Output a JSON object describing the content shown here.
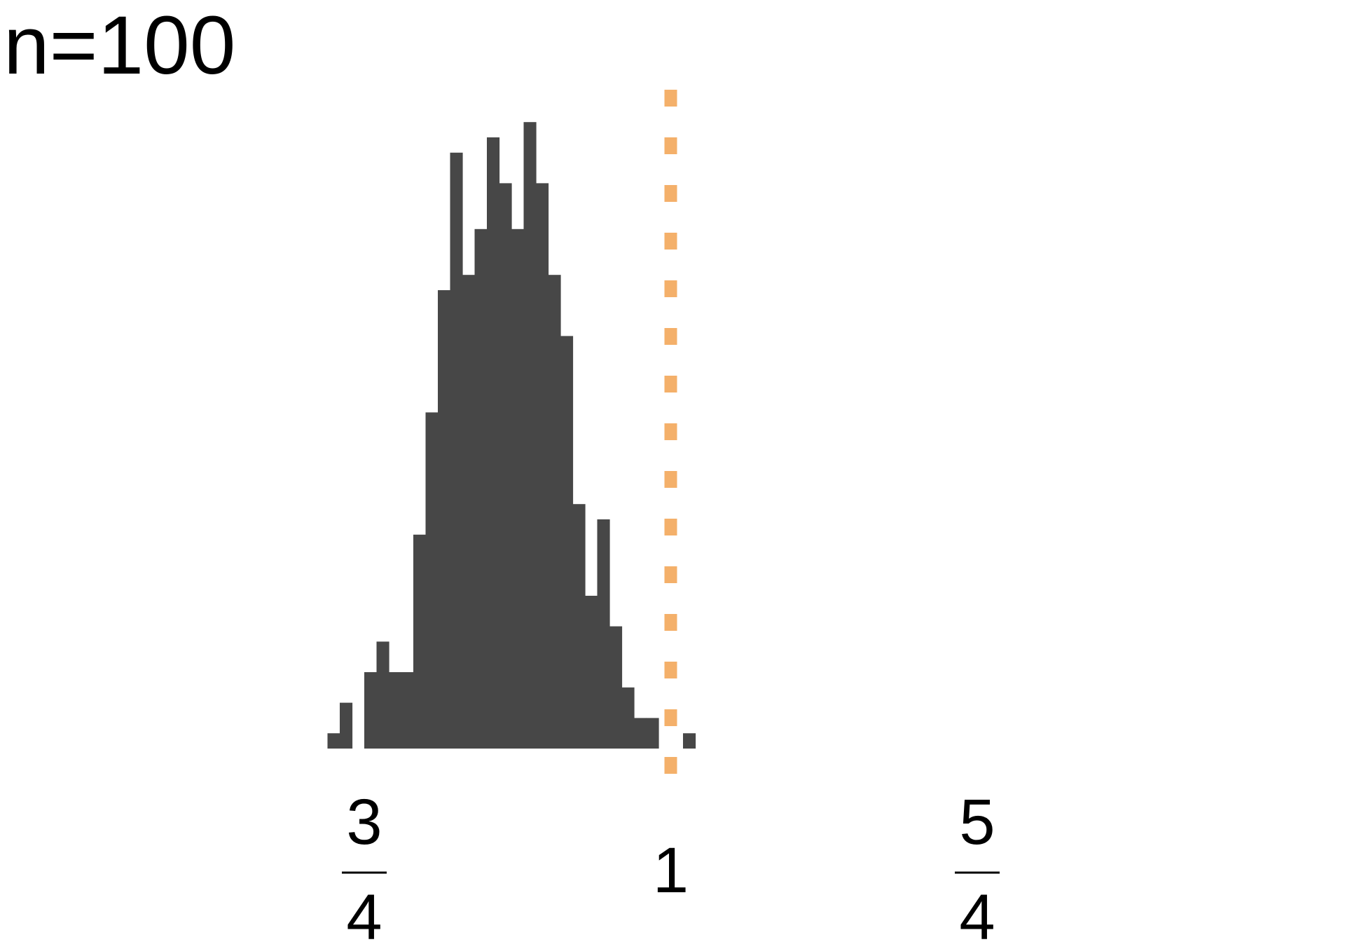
{
  "chart_data": {
    "type": "bar",
    "title": "n=100",
    "xlabel": "",
    "ylabel": "",
    "x_bin_width": 0.01,
    "x_range": [
      0.71,
      1.31
    ],
    "ylim": [
      0,
      40
    ],
    "bins": [
      {
        "x_start": 0.72,
        "x_end": 0.73,
        "count": 1
      },
      {
        "x_start": 0.73,
        "x_end": 0.74,
        "count": 3
      },
      {
        "x_start": 0.74,
        "x_end": 0.75,
        "count": 0
      },
      {
        "x_start": 0.75,
        "x_end": 0.76,
        "count": 5
      },
      {
        "x_start": 0.76,
        "x_end": 0.77,
        "count": 7
      },
      {
        "x_start": 0.77,
        "x_end": 0.78,
        "count": 5
      },
      {
        "x_start": 0.78,
        "x_end": 0.79,
        "count": 5
      },
      {
        "x_start": 0.79,
        "x_end": 0.8,
        "count": 14
      },
      {
        "x_start": 0.8,
        "x_end": 0.81,
        "count": 22
      },
      {
        "x_start": 0.81,
        "x_end": 0.82,
        "count": 30
      },
      {
        "x_start": 0.82,
        "x_end": 0.83,
        "count": 39
      },
      {
        "x_start": 0.83,
        "x_end": 0.84,
        "count": 31
      },
      {
        "x_start": 0.84,
        "x_end": 0.85,
        "count": 34
      },
      {
        "x_start": 0.85,
        "x_end": 0.86,
        "count": 40
      },
      {
        "x_start": 0.86,
        "x_end": 0.87,
        "count": 37
      },
      {
        "x_start": 0.87,
        "x_end": 0.88,
        "count": 34
      },
      {
        "x_start": 0.88,
        "x_end": 0.89,
        "count": 41
      },
      {
        "x_start": 0.89,
        "x_end": 0.9,
        "count": 37
      },
      {
        "x_start": 0.9,
        "x_end": 0.91,
        "count": 31
      },
      {
        "x_start": 0.91,
        "x_end": 0.92,
        "count": 27
      },
      {
        "x_start": 0.92,
        "x_end": 0.93,
        "count": 16
      },
      {
        "x_start": 0.93,
        "x_end": 0.94,
        "count": 10
      },
      {
        "x_start": 0.94,
        "x_end": 0.95,
        "count": 15
      },
      {
        "x_start": 0.95,
        "x_end": 0.96,
        "count": 8
      },
      {
        "x_start": 0.96,
        "x_end": 0.97,
        "count": 4
      },
      {
        "x_start": 0.97,
        "x_end": 0.98,
        "count": 2
      },
      {
        "x_start": 0.98,
        "x_end": 0.99,
        "count": 2
      },
      {
        "x_start": 0.99,
        "x_end": 1.0,
        "count": 0
      },
      {
        "x_start": 1.0,
        "x_end": 1.01,
        "count": 0
      },
      {
        "x_start": 1.01,
        "x_end": 1.02,
        "count": 1
      }
    ],
    "reference_line": {
      "x": 1.0,
      "style": "dashed",
      "color": "#f4b06a"
    },
    "x_ticks": [
      {
        "value": 0.75,
        "numerator": "3",
        "denominator": "4",
        "label": ""
      },
      {
        "value": 1.0,
        "numerator": "",
        "denominator": "",
        "label": "1"
      },
      {
        "value": 1.25,
        "numerator": "5",
        "denominator": "4",
        "label": ""
      }
    ],
    "y_axis_visible": false,
    "grid": false,
    "legend": "none",
    "colors": {
      "bars": "#474747",
      "reference_line": "#f4b06a",
      "text": "#000000",
      "background": "#ffffff"
    }
  }
}
